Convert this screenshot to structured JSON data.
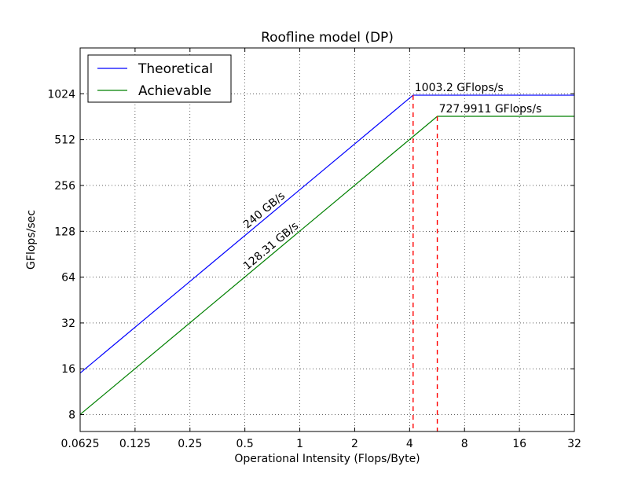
{
  "chart_data": {
    "type": "line",
    "title": "Roofline model (DP)",
    "xlabel": "Operational Intensity (Flops/Byte)",
    "ylabel": "GFlops/sec",
    "x_scale": "log2",
    "y_scale": "log2",
    "xlim": [
      0.0625,
      32
    ],
    "ylim": [
      6.2,
      2048
    ],
    "x_ticks": [
      0.0625,
      0.125,
      0.25,
      0.5,
      1,
      2,
      4,
      8,
      16,
      32
    ],
    "x_tick_labels": [
      "0.0625",
      "0.125",
      "0.25",
      "0.5",
      "1",
      "2",
      "4",
      "8",
      "16",
      "32"
    ],
    "y_ticks": [
      8,
      16,
      32,
      64,
      128,
      256,
      512,
      1024
    ],
    "y_tick_labels": [
      "8",
      "16",
      "32",
      "64",
      "128",
      "256",
      "512",
      "1024"
    ],
    "grid": true,
    "legend_position": "top-left",
    "series": [
      {
        "name": "Theoretical",
        "color": "#0000ff",
        "x": [
          0.0625,
          4.18,
          32
        ],
        "y": [
          15,
          1003.2,
          1003.2
        ],
        "bandwidth_label": "240 GB/s",
        "peak_label": "1003.2 GFlops/s",
        "ridge_x": 4.18
      },
      {
        "name": "Achievable",
        "color": "#008000",
        "x": [
          0.0625,
          5.673,
          32
        ],
        "y": [
          8.02,
          727.9911,
          727.9911
        ],
        "bandwidth_label": "128.31 GB/s",
        "peak_label": "727.9911 GFlops/s",
        "ridge_x": 5.673
      }
    ],
    "ridge_line_color": "#ff0000"
  }
}
